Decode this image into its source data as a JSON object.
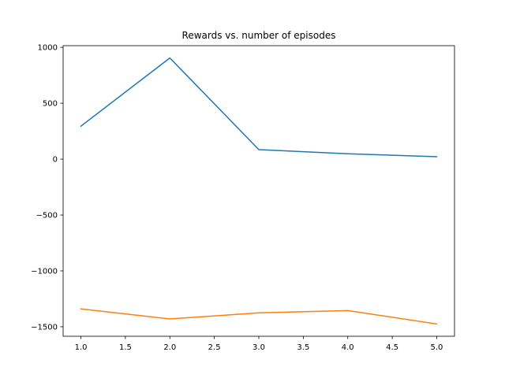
{
  "chart_data": {
    "type": "line",
    "title": "Rewards vs. number of episodes",
    "xlabel": "",
    "ylabel": "",
    "x": [
      1,
      2,
      3,
      4,
      5
    ],
    "series": [
      {
        "values": [
          295,
          905,
          85,
          48,
          22
        ],
        "color": "#1f77b4"
      },
      {
        "values": [
          -1340,
          -1430,
          -1375,
          -1355,
          -1475
        ],
        "color": "#ff7f0e"
      }
    ],
    "xlim": [
      0.8,
      5.2
    ],
    "ylim": [
      -1585,
      1015
    ],
    "x_ticks": [
      1.0,
      1.5,
      2.0,
      2.5,
      3.0,
      3.5,
      4.0,
      4.5,
      5.0
    ],
    "x_tick_labels": [
      "1.0",
      "1.5",
      "2.0",
      "2.5",
      "3.0",
      "3.5",
      "4.0",
      "4.5",
      "5.0"
    ],
    "y_ticks": [
      1000,
      500,
      0,
      -500,
      -1000,
      -1500
    ],
    "y_tick_labels": [
      "1000",
      "500",
      "0",
      "−500",
      "−1000",
      "−1500"
    ],
    "grid": false,
    "legend": "none"
  }
}
